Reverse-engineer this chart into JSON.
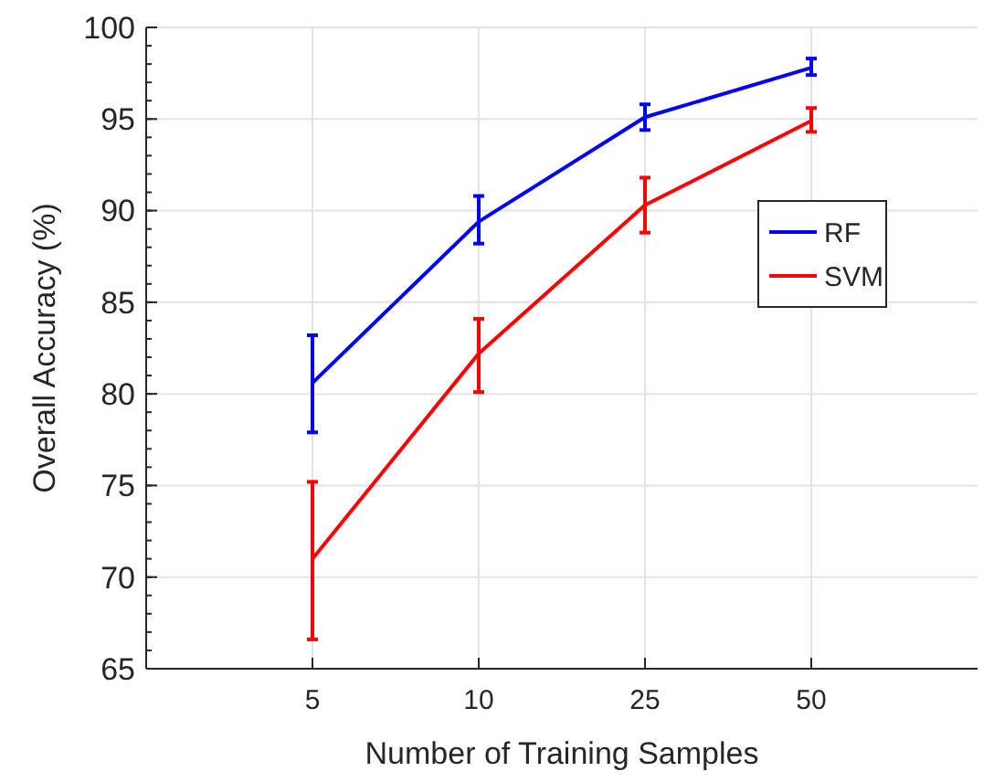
{
  "chart_data": {
    "type": "line",
    "xlabel": "Number of Training Samples",
    "ylabel": "Overall Accuracy (%)",
    "categories": [
      "5",
      "10",
      "25",
      "50"
    ],
    "ylim": [
      65,
      100
    ],
    "yticks": [
      65,
      70,
      75,
      80,
      85,
      90,
      95,
      100
    ],
    "grid": true,
    "legend": "right",
    "marker": "none",
    "line_style": "solid",
    "series": [
      {
        "name": "RF",
        "color": "#0000ff",
        "values": [
          80.6,
          89.4,
          95.1,
          97.8
        ],
        "errors": [
          [
            77.9,
            83.2
          ],
          [
            88.2,
            90.8
          ],
          [
            94.4,
            95.8
          ],
          [
            97.4,
            98.3
          ]
        ]
      },
      {
        "name": "SVM",
        "color": "#ff0000",
        "values": [
          71.0,
          82.2,
          90.3,
          94.9
        ],
        "errors": [
          [
            66.6,
            75.2
          ],
          [
            80.1,
            84.1
          ],
          [
            88.8,
            91.8
          ],
          [
            94.3,
            95.6
          ]
        ]
      }
    ]
  }
}
